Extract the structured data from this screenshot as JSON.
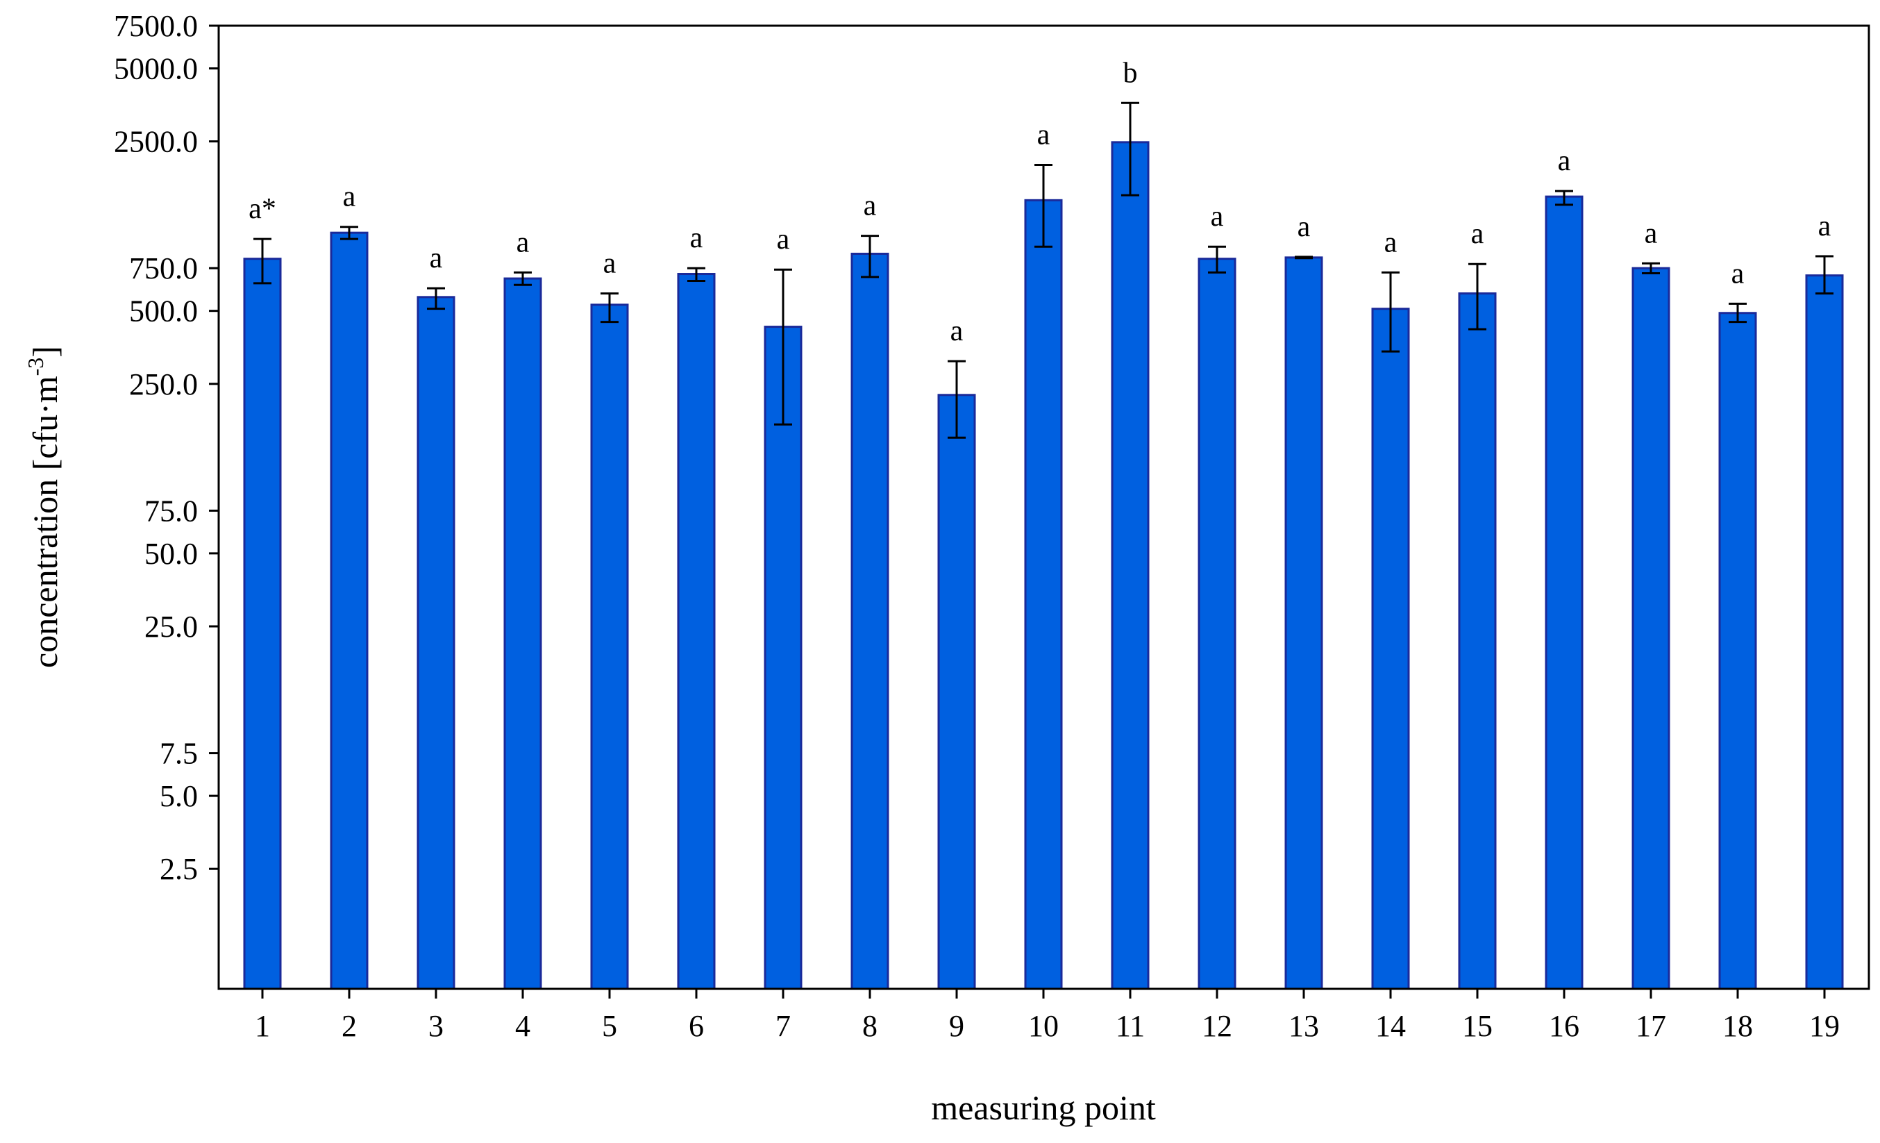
{
  "chart_data": {
    "type": "bar",
    "xlabel": "measuring point",
    "ylabel": {
      "base": "concentration [cfu·m",
      "sup": "-3",
      "close": "]"
    },
    "y_scale": "log",
    "ylim": [
      0.8,
      7500
    ],
    "y_ticks": [
      {
        "value": 2.5,
        "label": "2.5"
      },
      {
        "value": 5,
        "label": "5.0"
      },
      {
        "value": 7.5,
        "label": "7.5"
      },
      {
        "value": 25,
        "label": "25.0"
      },
      {
        "value": 50,
        "label": "50.0"
      },
      {
        "value": 75,
        "label": "75.0"
      },
      {
        "value": 250,
        "label": "250.0"
      },
      {
        "value": 500,
        "label": "500.0"
      },
      {
        "value": 750,
        "label": "750.0"
      },
      {
        "value": 2500,
        "label": "2500.0"
      },
      {
        "value": 5000,
        "label": "5000.0"
      },
      {
        "value": 7500,
        "label": "7500.0"
      }
    ],
    "categories": [
      "1",
      "2",
      "3",
      "4",
      "5",
      "6",
      "7",
      "8",
      "9",
      "10",
      "11",
      "12",
      "13",
      "14",
      "15",
      "16",
      "17",
      "18",
      "19"
    ],
    "values": [
      820,
      1050,
      570,
      680,
      530,
      710,
      430,
      860,
      225,
      1430,
      2480,
      820,
      830,
      510,
      590,
      1480,
      750,
      490,
      700
    ],
    "error_low": [
      650,
      990,
      510,
      640,
      450,
      665,
      170,
      690,
      150,
      920,
      1500,
      720,
      825,
      340,
      420,
      1370,
      715,
      450,
      590
    ],
    "error_high": [
      990,
      1110,
      620,
      720,
      590,
      750,
      740,
      1020,
      310,
      2000,
      3600,
      920,
      835,
      720,
      780,
      1560,
      785,
      535,
      840
    ],
    "group_labels": [
      "a*",
      "a",
      "a",
      "a",
      "a",
      "a",
      "a",
      "a",
      "a",
      "a",
      "b",
      "a",
      "a",
      "a",
      "a",
      "a",
      "a",
      "a",
      "a"
    ],
    "bar_color": "#0060e0",
    "bar_edge_color": "#1a2a9a",
    "grid": false,
    "legend": "none"
  }
}
